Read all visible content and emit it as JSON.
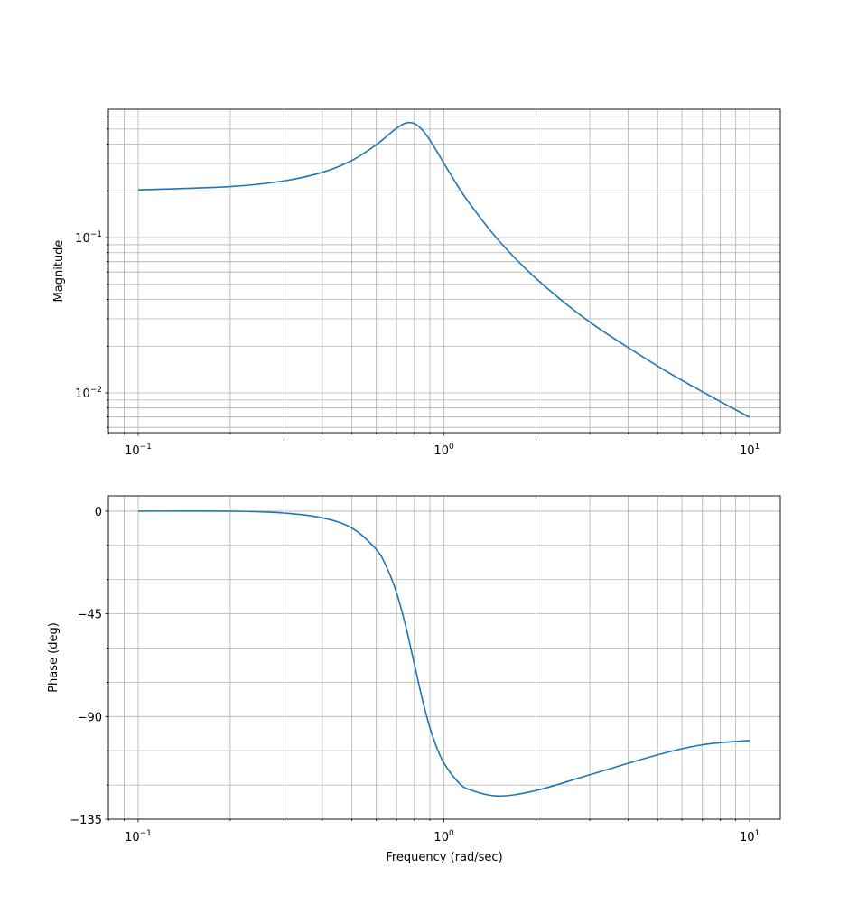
{
  "chart_data": [
    {
      "type": "line",
      "title": "",
      "xlabel": "",
      "ylabel": "Magnitude",
      "xscale": "log",
      "yscale": "log",
      "xlim": [
        0.0799,
        12.59
      ],
      "ylim": [
        0.00555,
        0.67
      ],
      "grid": true,
      "grid_which": "both",
      "line_color": "#1f77b4",
      "grid_color": "#b0b0b0",
      "xticks": [
        {
          "value": 0.1,
          "base": "10",
          "exp": "−1"
        },
        {
          "value": 1,
          "base": "10",
          "exp": "0"
        },
        {
          "value": 10,
          "base": "10",
          "exp": "1"
        }
      ],
      "yticks": [
        {
          "value": 0.01,
          "base": "10",
          "exp": "−2"
        },
        {
          "value": 0.1,
          "base": "10",
          "exp": "−1"
        }
      ],
      "series": [
        {
          "name": "magnitude",
          "x": [
            0.1,
            0.2,
            0.3,
            0.4,
            0.5,
            0.6,
            0.65,
            0.7,
            0.75,
            0.8,
            0.85,
            0.9,
            0.95,
            1.0,
            1.1,
            1.2,
            1.5,
            2,
            3,
            5,
            7,
            10
          ],
          "y": [
            0.2029,
            0.213,
            0.2319,
            0.2631,
            0.3138,
            0.3953,
            0.4495,
            0.506,
            0.5457,
            0.5427,
            0.4936,
            0.4238,
            0.3566,
            0.3006,
            0.2211,
            0.1709,
            0.0973,
            0.0546,
            0.0286,
            0.01488,
            0.01018,
            0.00696
          ]
        }
      ]
    },
    {
      "type": "line",
      "title": "",
      "xlabel": "Frequency (rad/sec)",
      "ylabel": "Phase (deg)",
      "xscale": "log",
      "yscale": "linear",
      "xlim": [
        0.0799,
        12.59
      ],
      "ylim": [
        -135,
        6.7
      ],
      "grid": true,
      "grid_which": "both",
      "line_color": "#1f77b4",
      "grid_color": "#b0b0b0",
      "xticks": [
        {
          "value": 0.1,
          "base": "10",
          "exp": "−1"
        },
        {
          "value": 1,
          "base": "10",
          "exp": "0"
        },
        {
          "value": 10,
          "base": "10",
          "exp": "1"
        }
      ],
      "yticks": [
        {
          "value": 0,
          "label": "0"
        },
        {
          "value": -45,
          "label": "−45"
        },
        {
          "value": -90,
          "label": "−90"
        },
        {
          "value": -135,
          "label": "−135"
        }
      ],
      "yminor_step": 15,
      "series": [
        {
          "name": "phase",
          "x": [
            0.1,
            0.2,
            0.3,
            0.4,
            0.5,
            0.6,
            0.65,
            0.7,
            0.75,
            0.8,
            0.85,
            0.9,
            0.95,
            1.0,
            1.1,
            1.2,
            1.5,
            2,
            3,
            5,
            7,
            10
          ],
          "y": [
            0.0,
            -0.02,
            -0.83,
            -2.92,
            -7.4,
            -16.7,
            -24.65,
            -35.8,
            -50.4,
            -66.95,
            -82.5,
            -94.97,
            -104.0,
            -110.4,
            -117.97,
            -121.8,
            -124.8,
            -122.4,
            -115.5,
            -106.8,
            -102.4,
            -100.5
          ]
        }
      ]
    }
  ]
}
